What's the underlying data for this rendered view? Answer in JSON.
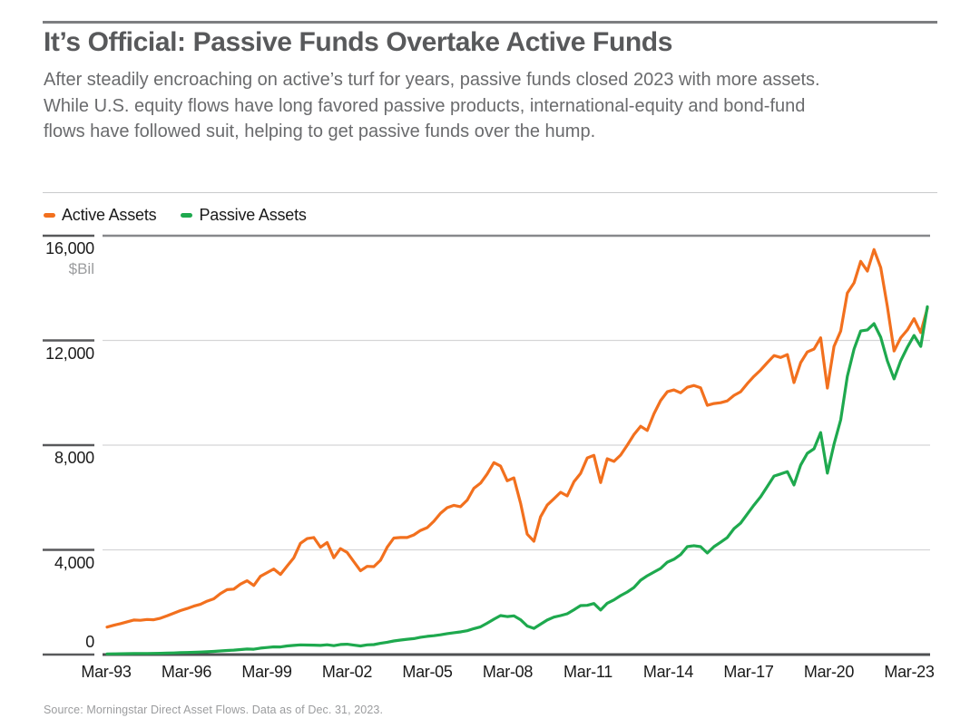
{
  "header": {
    "title": "It’s Official: Passive Funds Overtake Active Funds",
    "subtitle_lines": [
      "After steadily encroaching on active’s turf for years, passive funds closed 2023 with more assets.",
      "While U.S. equity flows have long favored passive products, international-equity and bond-fund",
      "flows have followed suit, helping to get passive funds over the hump."
    ]
  },
  "source": "Source: Morningstar Direct Asset Flows. Data as of Dec. 31, 2023.",
  "chart_data": {
    "type": "line",
    "title": "It’s Official: Passive Funds Overtake Active Funds",
    "unit_label": "$Bil",
    "xlabel": "",
    "ylabel": "Assets ($Bil)",
    "ylim": [
      0,
      16000
    ],
    "grid": true,
    "legend_position": "top-left",
    "x_frequency": "quarterly",
    "x_range": [
      "Mar-1993",
      "Dec-2023"
    ],
    "x_ticks": [
      "Mar-93",
      "Mar-96",
      "Mar-99",
      "Mar-02",
      "Mar-05",
      "Mar-08",
      "Mar-11",
      "Mar-14",
      "Mar-17",
      "Mar-20",
      "Mar-23"
    ],
    "y_ticks": [
      {
        "value": 16000,
        "label": "16,000"
      },
      {
        "value": 12000,
        "label": "12,000"
      },
      {
        "value": 8000,
        "label": "8,000"
      },
      {
        "value": 4000,
        "label": "4,000"
      },
      {
        "value": 0,
        "label": "0"
      }
    ],
    "series": [
      {
        "name": "Active Assets",
        "color": "#f2701e",
        "values": [
          1050,
          1120,
          1180,
          1250,
          1320,
          1310,
          1340,
          1330,
          1390,
          1480,
          1580,
          1680,
          1760,
          1850,
          1920,
          2040,
          2130,
          2330,
          2480,
          2500,
          2690,
          2820,
          2640,
          2990,
          3130,
          3270,
          3060,
          3380,
          3700,
          4250,
          4430,
          4470,
          4100,
          4280,
          3700,
          4050,
          3900,
          3550,
          3200,
          3370,
          3360,
          3600,
          4100,
          4450,
          4470,
          4470,
          4570,
          4740,
          4850,
          5090,
          5400,
          5610,
          5700,
          5650,
          5900,
          6350,
          6550,
          6900,
          7330,
          7200,
          6640,
          6750,
          5780,
          4600,
          4330,
          5260,
          5710,
          5950,
          6200,
          6060,
          6600,
          6920,
          7510,
          7610,
          6570,
          7480,
          7380,
          7620,
          8000,
          8400,
          8720,
          8560,
          9200,
          9700,
          10040,
          10110,
          10000,
          10210,
          10280,
          10190,
          9520,
          9590,
          9620,
          9690,
          9900,
          10040,
          10350,
          10630,
          10870,
          11150,
          11420,
          11350,
          11460,
          10390,
          11150,
          11560,
          11670,
          12100,
          10180,
          11770,
          12360,
          13810,
          14200,
          15020,
          14650,
          15470,
          14780,
          13300,
          11600,
          12100,
          12400,
          12830,
          12300,
          13230
        ]
      },
      {
        "name": "Passive Assets",
        "color": "#1ea94e",
        "values": [
          25,
          28,
          31,
          35,
          38,
          40,
          42,
          45,
          50,
          56,
          63,
          72,
          80,
          88,
          96,
          108,
          120,
          138,
          155,
          170,
          190,
          210,
          205,
          245,
          270,
          295,
          290,
          330,
          350,
          370,
          365,
          360,
          350,
          375,
          340,
          385,
          395,
          360,
          330,
          370,
          380,
          430,
          470,
          520,
          555,
          585,
          610,
          660,
          695,
          720,
          755,
          800,
          835,
          865,
          910,
          990,
          1060,
          1200,
          1350,
          1490,
          1450,
          1480,
          1330,
          1090,
          1000,
          1160,
          1320,
          1430,
          1490,
          1560,
          1710,
          1870,
          1880,
          1950,
          1700,
          1960,
          2090,
          2250,
          2390,
          2560,
          2840,
          3010,
          3150,
          3290,
          3530,
          3640,
          3820,
          4120,
          4160,
          4120,
          3880,
          4120,
          4290,
          4470,
          4810,
          5020,
          5370,
          5710,
          6030,
          6420,
          6820,
          6900,
          6990,
          6480,
          7240,
          7690,
          7860,
          8480,
          6930,
          8030,
          8970,
          10630,
          11670,
          12360,
          12400,
          12640,
          12120,
          11220,
          10530,
          11220,
          11740,
          12190,
          11770,
          13290
        ]
      }
    ]
  }
}
